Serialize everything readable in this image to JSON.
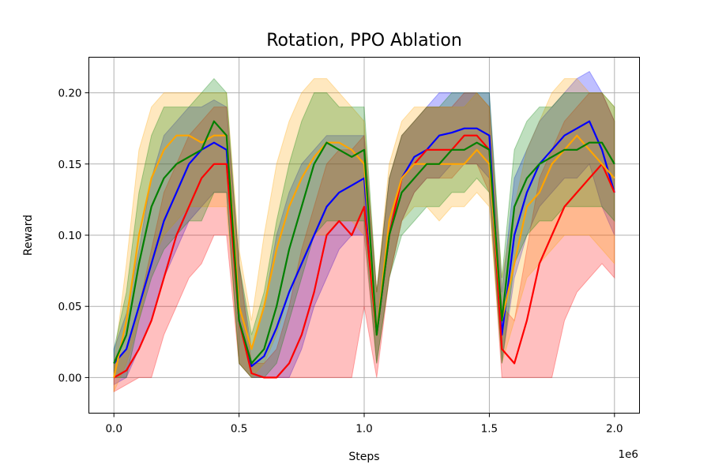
{
  "chart_data": {
    "type": "line",
    "title": "Rotation, PPO Ablation",
    "xlabel": "Steps",
    "ylabel": "Reward",
    "x_offset_label": "1e6",
    "xlim": [
      -0.1,
      2.1
    ],
    "ylim": [
      -0.025,
      0.225
    ],
    "x_ticks": [
      0.0,
      0.5,
      1.0,
      1.5,
      2.0
    ],
    "x_tick_labels": [
      "0.0",
      "0.5",
      "1.0",
      "1.5",
      "2.0"
    ],
    "y_ticks": [
      0.0,
      0.05,
      0.1,
      0.15,
      0.2
    ],
    "y_tick_labels": [
      "0.00",
      "0.05",
      "0.10",
      "0.15",
      "0.20"
    ],
    "grid": true,
    "legend": "none",
    "x_unit_scale": 1000000,
    "series": [
      {
        "color": "#0000ff",
        "x": [
          0.0,
          0.05,
          0.1,
          0.15,
          0.2,
          0.25,
          0.3,
          0.35,
          0.4,
          0.45,
          0.5,
          0.55,
          0.6,
          0.65,
          0.7,
          0.75,
          0.8,
          0.85,
          0.9,
          0.95,
          1.0,
          1.05,
          1.1,
          1.15,
          1.2,
          1.25,
          1.3,
          1.35,
          1.4,
          1.45,
          1.5,
          1.55,
          1.6,
          1.65,
          1.7,
          1.75,
          1.8,
          1.85,
          1.9,
          1.95,
          2.0
        ],
        "mean": [
          0.01,
          0.02,
          0.05,
          0.08,
          0.11,
          0.13,
          0.15,
          0.16,
          0.165,
          0.16,
          0.04,
          0.008,
          0.015,
          0.035,
          0.06,
          0.08,
          0.1,
          0.12,
          0.13,
          0.135,
          0.14,
          0.03,
          0.1,
          0.14,
          0.155,
          0.16,
          0.17,
          0.172,
          0.175,
          0.175,
          0.17,
          0.03,
          0.1,
          0.13,
          0.15,
          0.16,
          0.17,
          0.175,
          0.18,
          0.16,
          0.13
        ],
        "lower": [
          -0.005,
          0.0,
          0.02,
          0.04,
          0.07,
          0.09,
          0.11,
          0.12,
          0.13,
          0.13,
          0.01,
          0.0,
          0.0,
          0.0,
          0.0,
          0.02,
          0.05,
          0.07,
          0.09,
          0.1,
          0.1,
          0.01,
          0.07,
          0.11,
          0.13,
          0.14,
          0.14,
          0.15,
          0.15,
          0.15,
          0.14,
          0.01,
          0.07,
          0.1,
          0.12,
          0.13,
          0.14,
          0.14,
          0.15,
          0.12,
          0.1
        ],
        "upper": [
          0.02,
          0.045,
          0.09,
          0.14,
          0.17,
          0.18,
          0.19,
          0.19,
          0.195,
          0.19,
          0.08,
          0.02,
          0.05,
          0.1,
          0.13,
          0.15,
          0.16,
          0.17,
          0.17,
          0.17,
          0.17,
          0.06,
          0.14,
          0.17,
          0.18,
          0.19,
          0.2,
          0.2,
          0.2,
          0.2,
          0.2,
          0.06,
          0.14,
          0.16,
          0.18,
          0.19,
          0.2,
          0.21,
          0.215,
          0.2,
          0.18
        ]
      },
      {
        "color": "#ff0000",
        "x": [
          0.0,
          0.05,
          0.1,
          0.15,
          0.2,
          0.25,
          0.3,
          0.35,
          0.4,
          0.45,
          0.5,
          0.55,
          0.6,
          0.65,
          0.7,
          0.75,
          0.8,
          0.85,
          0.9,
          0.95,
          1.0,
          1.05,
          1.1,
          1.15,
          1.2,
          1.25,
          1.3,
          1.35,
          1.4,
          1.45,
          1.5,
          1.55,
          1.6,
          1.65,
          1.7,
          1.75,
          1.8,
          1.85,
          1.9,
          1.95,
          2.0
        ],
        "mean": [
          0.0,
          0.005,
          0.02,
          0.04,
          0.07,
          0.1,
          0.12,
          0.14,
          0.15,
          0.15,
          0.04,
          0.003,
          0.0,
          0.0,
          0.01,
          0.03,
          0.06,
          0.1,
          0.11,
          0.1,
          0.12,
          0.03,
          0.1,
          0.14,
          0.15,
          0.16,
          0.16,
          0.16,
          0.17,
          0.17,
          0.16,
          0.02,
          0.01,
          0.04,
          0.08,
          0.1,
          0.12,
          0.13,
          0.14,
          0.15,
          0.13
        ],
        "lower": [
          -0.01,
          -0.005,
          0.0,
          0.0,
          0.03,
          0.05,
          0.07,
          0.08,
          0.1,
          0.1,
          0.01,
          0.0,
          0.0,
          0.0,
          0.0,
          0.0,
          0.0,
          0.0,
          0.0,
          0.0,
          0.05,
          0.0,
          0.07,
          0.11,
          0.13,
          0.14,
          0.14,
          0.14,
          0.15,
          0.15,
          0.13,
          0.0,
          0.0,
          0.0,
          0.0,
          0.0,
          0.04,
          0.06,
          0.07,
          0.08,
          0.07
        ],
        "upper": [
          0.01,
          0.02,
          0.05,
          0.09,
          0.13,
          0.15,
          0.17,
          0.18,
          0.19,
          0.19,
          0.08,
          0.01,
          0.01,
          0.02,
          0.05,
          0.09,
          0.12,
          0.15,
          0.16,
          0.16,
          0.17,
          0.06,
          0.14,
          0.17,
          0.18,
          0.19,
          0.19,
          0.19,
          0.2,
          0.2,
          0.19,
          0.05,
          0.04,
          0.09,
          0.14,
          0.16,
          0.18,
          0.19,
          0.2,
          0.2,
          0.18
        ]
      },
      {
        "color": "#ffa500",
        "x": [
          0.0,
          0.05,
          0.1,
          0.15,
          0.2,
          0.25,
          0.3,
          0.35,
          0.4,
          0.45,
          0.5,
          0.55,
          0.6,
          0.65,
          0.7,
          0.75,
          0.8,
          0.85,
          0.9,
          0.95,
          1.0,
          1.05,
          1.1,
          1.15,
          1.2,
          1.25,
          1.3,
          1.35,
          1.4,
          1.45,
          1.5,
          1.55,
          1.6,
          1.65,
          1.7,
          1.75,
          1.8,
          1.85,
          1.9,
          1.95,
          2.0
        ],
        "mean": [
          0.0,
          0.04,
          0.1,
          0.14,
          0.16,
          0.17,
          0.17,
          0.165,
          0.17,
          0.17,
          0.05,
          0.02,
          0.05,
          0.09,
          0.12,
          0.14,
          0.155,
          0.165,
          0.165,
          0.16,
          0.15,
          0.03,
          0.11,
          0.14,
          0.15,
          0.15,
          0.15,
          0.15,
          0.15,
          0.16,
          0.15,
          0.04,
          0.08,
          0.12,
          0.13,
          0.15,
          0.16,
          0.17,
          0.16,
          0.15,
          0.14
        ],
        "lower": [
          -0.01,
          0.01,
          0.04,
          0.08,
          0.1,
          0.11,
          0.12,
          0.12,
          0.12,
          0.12,
          0.01,
          0.0,
          0.01,
          0.03,
          0.06,
          0.08,
          0.1,
          0.1,
          0.11,
          0.11,
          0.1,
          0.01,
          0.07,
          0.11,
          0.12,
          0.12,
          0.11,
          0.12,
          0.12,
          0.13,
          0.12,
          0.01,
          0.04,
          0.07,
          0.08,
          0.09,
          0.1,
          0.1,
          0.1,
          0.09,
          0.08
        ],
        "upper": [
          0.01,
          0.08,
          0.16,
          0.19,
          0.2,
          0.2,
          0.2,
          0.2,
          0.2,
          0.2,
          0.09,
          0.04,
          0.1,
          0.15,
          0.18,
          0.2,
          0.21,
          0.21,
          0.2,
          0.19,
          0.18,
          0.06,
          0.15,
          0.18,
          0.19,
          0.19,
          0.19,
          0.19,
          0.19,
          0.2,
          0.19,
          0.07,
          0.12,
          0.16,
          0.18,
          0.2,
          0.21,
          0.21,
          0.2,
          0.2,
          0.19
        ]
      },
      {
        "color": "#008000",
        "x": [
          0.0,
          0.05,
          0.1,
          0.15,
          0.2,
          0.25,
          0.3,
          0.35,
          0.4,
          0.45,
          0.5,
          0.55,
          0.6,
          0.65,
          0.7,
          0.75,
          0.8,
          0.85,
          0.9,
          0.95,
          1.0,
          1.05,
          1.1,
          1.15,
          1.2,
          1.25,
          1.3,
          1.35,
          1.4,
          1.45,
          1.5,
          1.55,
          1.6,
          1.65,
          1.7,
          1.75,
          1.8,
          1.85,
          1.9,
          1.95,
          2.0
        ],
        "mean": [
          0.01,
          0.03,
          0.08,
          0.12,
          0.14,
          0.15,
          0.155,
          0.16,
          0.18,
          0.17,
          0.04,
          0.01,
          0.02,
          0.05,
          0.09,
          0.12,
          0.15,
          0.165,
          0.16,
          0.155,
          0.16,
          0.03,
          0.1,
          0.13,
          0.14,
          0.15,
          0.15,
          0.16,
          0.16,
          0.165,
          0.16,
          0.04,
          0.12,
          0.14,
          0.15,
          0.155,
          0.16,
          0.16,
          0.165,
          0.165,
          0.15
        ],
        "lower": [
          0.0,
          0.0,
          0.04,
          0.07,
          0.09,
          0.1,
          0.11,
          0.11,
          0.13,
          0.13,
          0.01,
          0.0,
          0.0,
          0.01,
          0.04,
          0.07,
          0.1,
          0.11,
          0.11,
          0.11,
          0.11,
          0.01,
          0.07,
          0.1,
          0.11,
          0.12,
          0.12,
          0.13,
          0.13,
          0.14,
          0.13,
          0.01,
          0.08,
          0.1,
          0.11,
          0.11,
          0.12,
          0.12,
          0.12,
          0.12,
          0.11
        ],
        "upper": [
          0.02,
          0.06,
          0.13,
          0.17,
          0.19,
          0.19,
          0.19,
          0.2,
          0.21,
          0.2,
          0.08,
          0.03,
          0.06,
          0.11,
          0.15,
          0.18,
          0.2,
          0.2,
          0.19,
          0.19,
          0.19,
          0.06,
          0.14,
          0.17,
          0.18,
          0.19,
          0.19,
          0.2,
          0.2,
          0.2,
          0.2,
          0.07,
          0.16,
          0.18,
          0.19,
          0.19,
          0.2,
          0.2,
          0.2,
          0.2,
          0.19
        ]
      }
    ]
  }
}
